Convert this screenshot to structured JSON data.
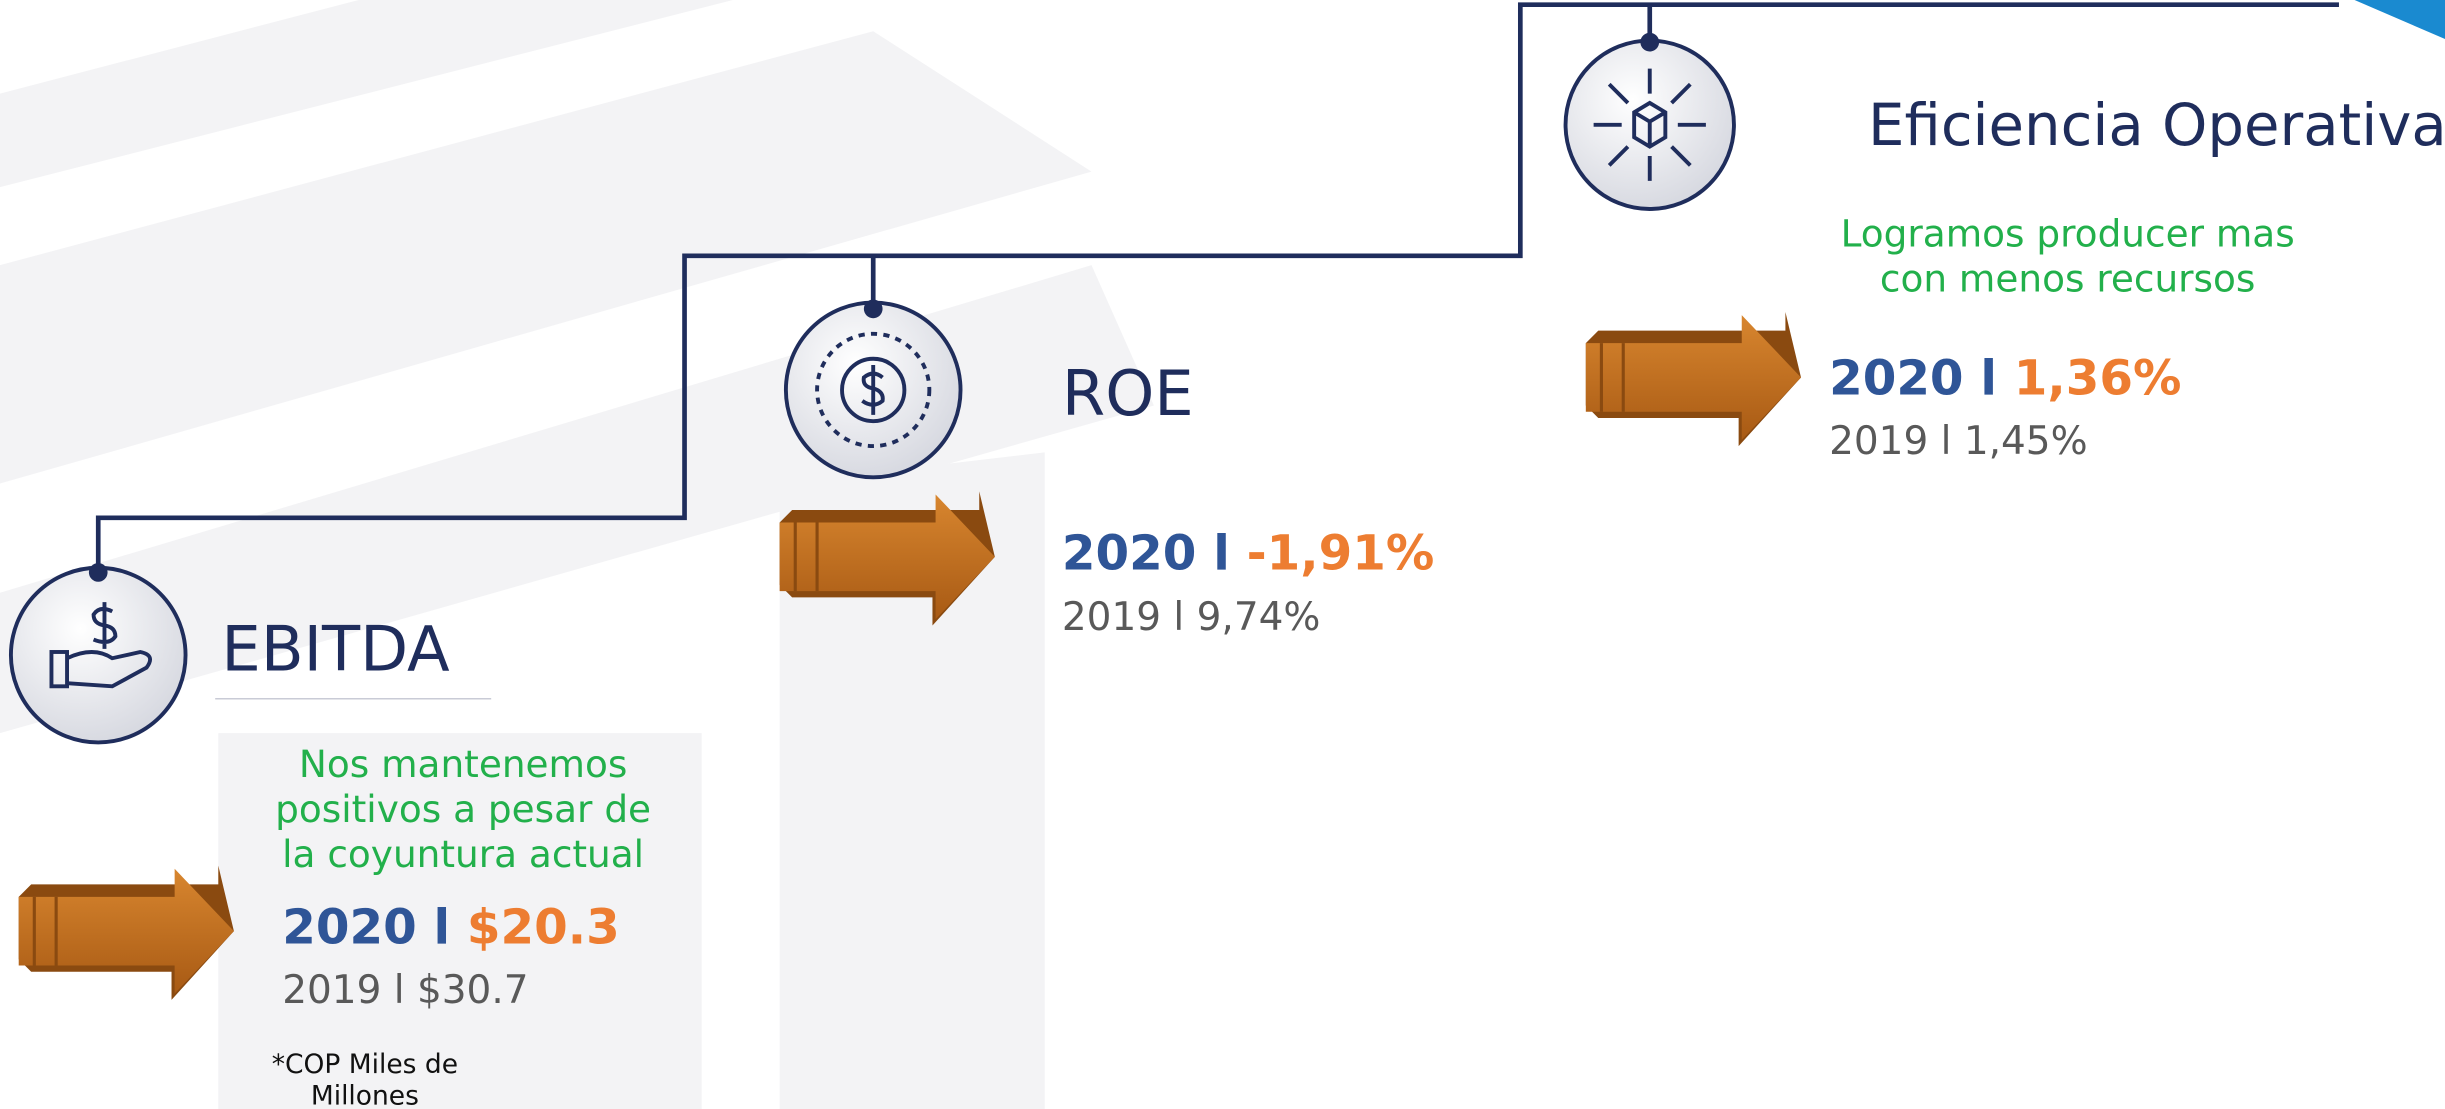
{
  "ebitda": {
    "title": "EBITDA",
    "description": [
      "Nos mantenemos",
      "positivos a pesar de",
      "la coyuntura actual"
    ],
    "current_year": "2020 l ",
    "current_value": "$20.3",
    "previous": "2019 l $30.7",
    "footnote": [
      "*COP Miles de",
      "Millones"
    ]
  },
  "roe": {
    "title": "ROE",
    "current_year": "2020 l ",
    "current_value": "-1,91%",
    "previous": "2019 l 9,74%"
  },
  "eficiencia": {
    "title": "Eficiencia Operativa",
    "description": [
      "Logramos producer mas",
      "con menos recursos"
    ],
    "current_year": "2020 l ",
    "current_value": "1,36%",
    "previous": "2019 l 1,45%"
  }
}
